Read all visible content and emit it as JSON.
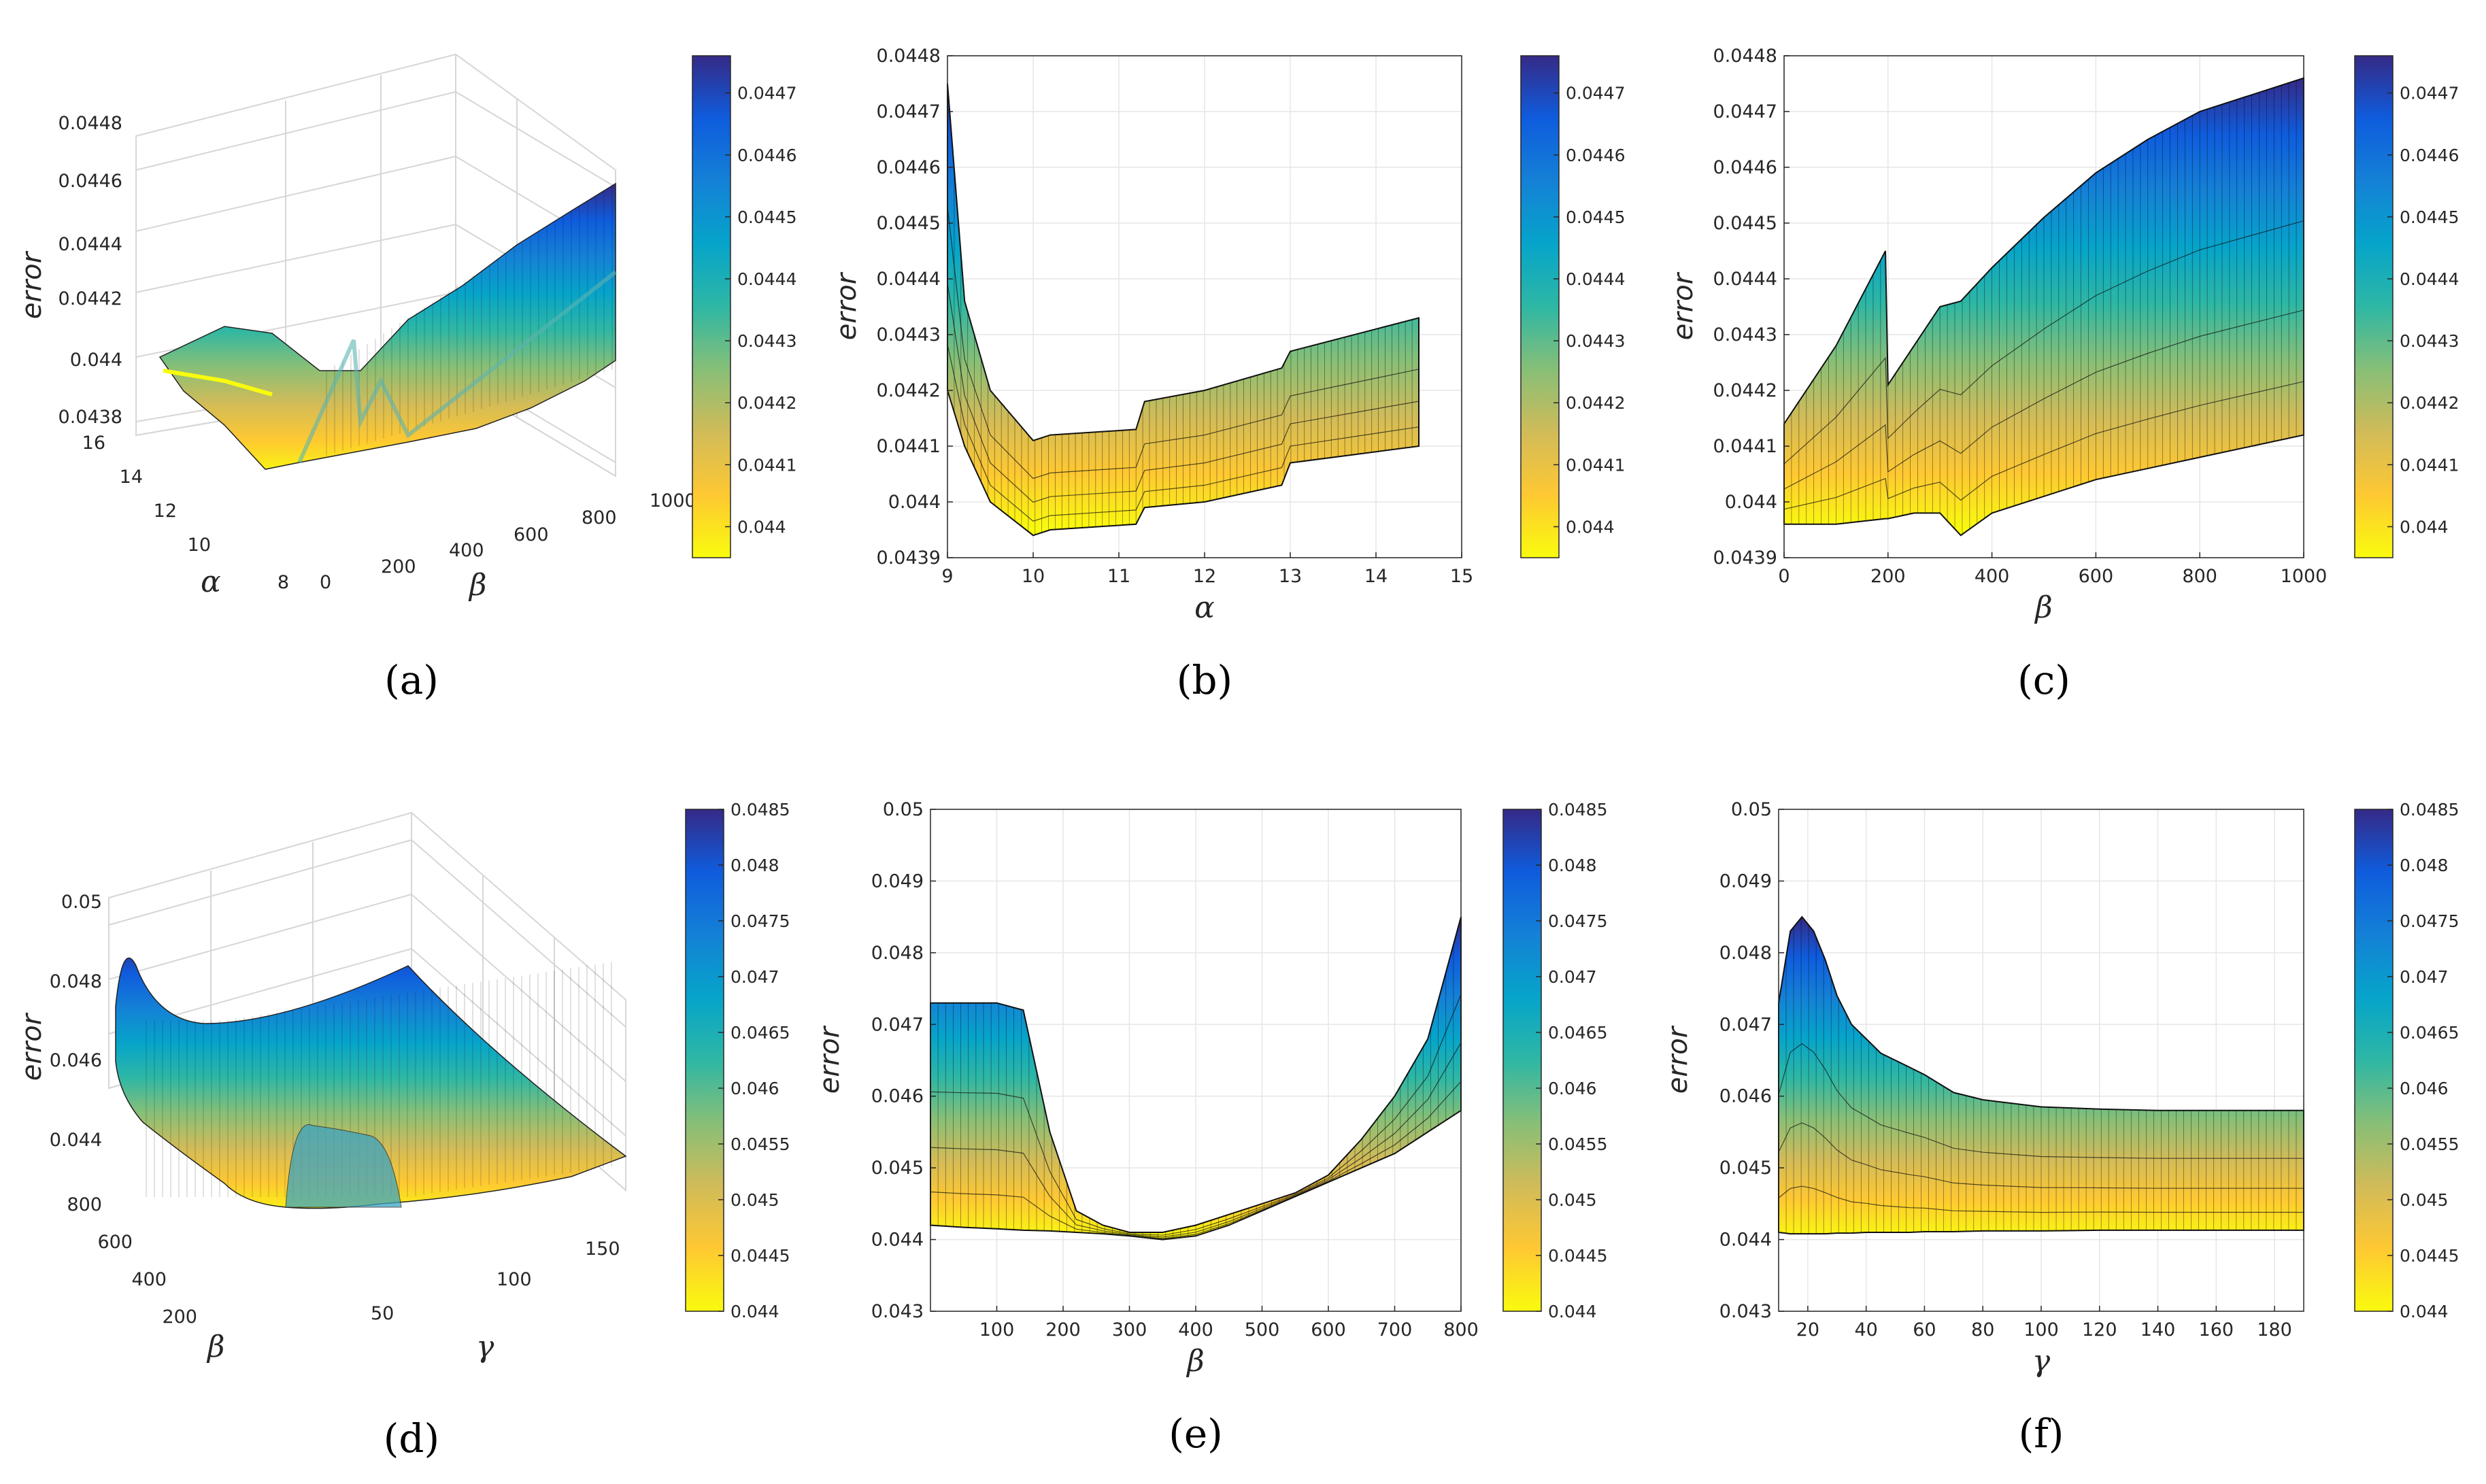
{
  "colormap": {
    "name": "parula-reversed",
    "stops": [
      "#352a87",
      "#0f5cdd",
      "#1481d6",
      "#06a4ca",
      "#2eb7a4",
      "#87bf77",
      "#d1bb59",
      "#fec832",
      "#f9fb0e"
    ]
  },
  "chart_data": [
    {
      "id": "a",
      "type": "surface3d",
      "caption": "(a)",
      "zlabel": "error",
      "xlabel": "β",
      "ylabel": "α",
      "zticks": [
        "0.0438",
        "0.044",
        "0.0442",
        "0.0444",
        "0.0446",
        "0.0448"
      ],
      "zlim": [
        0.0438,
        0.0448
      ],
      "xticks": [
        "0",
        "200",
        "400",
        "600",
        "800",
        "1000"
      ],
      "xlim": [
        0,
        1000
      ],
      "yticks": [
        "8",
        "10",
        "12",
        "14",
        "16"
      ],
      "ylim": [
        8,
        16
      ],
      "colorbar": {
        "ticks": [
          "0.044",
          "0.0441",
          "0.0442",
          "0.0443",
          "0.0444",
          "0.0445",
          "0.0446",
          "0.0447"
        ],
        "range": [
          0.04395,
          0.04476
        ]
      }
    },
    {
      "id": "b",
      "type": "area-projection",
      "caption": "(b)",
      "ylabel": "error",
      "xlabel": "α",
      "xticks": [
        "9",
        "10",
        "11",
        "12",
        "13",
        "14",
        "15"
      ],
      "xlim": [
        9,
        15
      ],
      "yticks": [
        "0.0439",
        "0.044",
        "0.0441",
        "0.0442",
        "0.0443",
        "0.0444",
        "0.0445",
        "0.0446",
        "0.0447",
        "0.0448"
      ],
      "ylim": [
        0.0439,
        0.0448
      ],
      "x": [
        9,
        9.2,
        9.5,
        10,
        10.2,
        11.2,
        11.3,
        12,
        12.9,
        13,
        14,
        14.5
      ],
      "upper": [
        0.04475,
        0.04436,
        0.0442,
        0.04411,
        0.04412,
        0.04413,
        0.04418,
        0.0442,
        0.04424,
        0.04427,
        0.04431,
        0.04433
      ],
      "lower": [
        0.0442,
        0.0441,
        0.044,
        0.04394,
        0.04395,
        0.04396,
        0.04399,
        0.044,
        0.04403,
        0.04407,
        0.04409,
        0.0441
      ],
      "colorbar": {
        "ticks": [
          "0.044",
          "0.0441",
          "0.0442",
          "0.0443",
          "0.0444",
          "0.0445",
          "0.0446",
          "0.0447"
        ],
        "range": [
          0.04395,
          0.04476
        ]
      }
    },
    {
      "id": "c",
      "type": "area-projection",
      "caption": "(c)",
      "ylabel": "error",
      "xlabel": "β",
      "xticks": [
        "0",
        "200",
        "400",
        "600",
        "800",
        "1000"
      ],
      "xlim": [
        0,
        1000
      ],
      "yticks": [
        "0.0439",
        "0.044",
        "0.0441",
        "0.0442",
        "0.0443",
        "0.0444",
        "0.0445",
        "0.0446",
        "0.0447",
        "0.0448"
      ],
      "ylim": [
        0.0439,
        0.0448
      ],
      "x": [
        0,
        100,
        195,
        200,
        250,
        300,
        340,
        400,
        500,
        600,
        700,
        800,
        900,
        1000
      ],
      "upper": [
        0.04414,
        0.04428,
        0.04445,
        0.04421,
        0.04428,
        0.04435,
        0.04436,
        0.04442,
        0.04451,
        0.04459,
        0.04465,
        0.0447,
        0.04473,
        0.04476
      ],
      "lower": [
        0.04396,
        0.04396,
        0.04397,
        0.04397,
        0.04398,
        0.04398,
        0.04394,
        0.04398,
        0.04401,
        0.04404,
        0.04406,
        0.04408,
        0.0441,
        0.04412
      ],
      "colorbar": {
        "ticks": [
          "0.044",
          "0.0441",
          "0.0442",
          "0.0443",
          "0.0444",
          "0.0445",
          "0.0446",
          "0.0447"
        ],
        "range": [
          0.04395,
          0.04476
        ]
      }
    },
    {
      "id": "d",
      "type": "surface3d",
      "caption": "(d)",
      "zlabel": "error",
      "xlabel": "γ",
      "ylabel": "β",
      "zticks": [
        "0.044",
        "0.046",
        "0.048",
        "0.05"
      ],
      "zlim": [
        0.043,
        0.05
      ],
      "xticks": [
        "50",
        "100",
        "150"
      ],
      "xlim": [
        10,
        190
      ],
      "yticks": [
        "200",
        "400",
        "600",
        "800"
      ],
      "ylim": [
        0,
        800
      ],
      "colorbar": {
        "ticks": [
          "0.044",
          "0.0445",
          "0.045",
          "0.0455",
          "0.046",
          "0.0465",
          "0.047",
          "0.0475",
          "0.048",
          "0.0485"
        ],
        "range": [
          0.044,
          0.0485
        ]
      }
    },
    {
      "id": "e",
      "type": "area-projection",
      "caption": "(e)",
      "ylabel": "error",
      "xlabel": "β",
      "xticks": [
        "100",
        "200",
        "300",
        "400",
        "500",
        "600",
        "700",
        "800"
      ],
      "xlim": [
        0,
        800
      ],
      "yticks": [
        "0.043",
        "0.044",
        "0.045",
        "0.046",
        "0.047",
        "0.048",
        "0.049",
        "0.05"
      ],
      "ylim": [
        0.043,
        0.05
      ],
      "x": [
        0,
        50,
        100,
        140,
        180,
        220,
        260,
        300,
        350,
        400,
        450,
        500,
        550,
        600,
        650,
        700,
        750,
        800
      ],
      "upper": [
        0.0473,
        0.0473,
        0.0473,
        0.0472,
        0.0455,
        0.0444,
        0.0442,
        0.0441,
        0.0441,
        0.0442,
        0.04435,
        0.0445,
        0.04465,
        0.0449,
        0.0454,
        0.046,
        0.0468,
        0.0485
      ],
      "lower": [
        0.0442,
        0.04417,
        0.04415,
        0.04413,
        0.04412,
        0.0441,
        0.04408,
        0.04405,
        0.044,
        0.04405,
        0.0442,
        0.0444,
        0.0446,
        0.0448,
        0.045,
        0.0452,
        0.0455,
        0.0458
      ],
      "colorbar": {
        "ticks": [
          "0.044",
          "0.0445",
          "0.045",
          "0.0455",
          "0.046",
          "0.0465",
          "0.047",
          "0.0475",
          "0.048",
          "0.0485"
        ],
        "range": [
          0.044,
          0.0485
        ]
      }
    },
    {
      "id": "f",
      "type": "area-projection",
      "caption": "(f)",
      "ylabel": "error",
      "xlabel": "γ",
      "xticks": [
        "20",
        "40",
        "60",
        "80",
        "100",
        "120",
        "140",
        "160",
        "180"
      ],
      "xlim": [
        10,
        190
      ],
      "yticks": [
        "0.043",
        "0.044",
        "0.045",
        "0.046",
        "0.047",
        "0.048",
        "0.049",
        "0.05"
      ],
      "ylim": [
        0.043,
        0.05
      ],
      "x": [
        10,
        14,
        18,
        22,
        26,
        30,
        35,
        40,
        45,
        50,
        55,
        60,
        70,
        80,
        100,
        120,
        140,
        160,
        190
      ],
      "upper": [
        0.0473,
        0.0483,
        0.0485,
        0.0483,
        0.0479,
        0.0474,
        0.047,
        0.0468,
        0.0466,
        0.0465,
        0.0464,
        0.0463,
        0.04605,
        0.04595,
        0.04585,
        0.04582,
        0.0458,
        0.0458,
        0.0458
      ],
      "lower": [
        0.0441,
        0.04408,
        0.04408,
        0.04408,
        0.04408,
        0.04409,
        0.04409,
        0.0441,
        0.0441,
        0.0441,
        0.0441,
        0.04411,
        0.04411,
        0.04412,
        0.04412,
        0.04413,
        0.04413,
        0.04413,
        0.04413
      ],
      "colorbar": {
        "ticks": [
          "0.044",
          "0.0445",
          "0.045",
          "0.0455",
          "0.046",
          "0.0465",
          "0.047",
          "0.0475",
          "0.048",
          "0.0485"
        ],
        "range": [
          0.044,
          0.0485
        ]
      }
    }
  ]
}
